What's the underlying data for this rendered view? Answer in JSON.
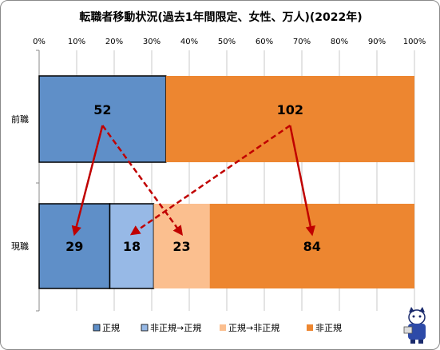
{
  "chart_data": {
    "type": "bar",
    "orientation": "horizontal",
    "stacking": "percent",
    "title": "転職者移動状況(過去1年間限定、女性、万人)(2022年)",
    "categories": [
      "前職",
      "現職"
    ],
    "x_ticks": [
      "0%",
      "10%",
      "20%",
      "30%",
      "40%",
      "50%",
      "60%",
      "70%",
      "80%",
      "90%",
      "100%"
    ],
    "xlim": [
      0,
      100
    ],
    "grid": true,
    "series": [
      {
        "name": "正規",
        "values": [
          52,
          29
        ],
        "color": "#5f8fc8"
      },
      {
        "name": "非正規→正規",
        "values": [
          0,
          18
        ],
        "color": "#97b9e6"
      },
      {
        "name": "正規→非正規",
        "values": [
          0,
          23
        ],
        "color": "#fbbf8f"
      },
      {
        "name": "非正規",
        "values": [
          102,
          84
        ],
        "color": "#ed8630"
      }
    ],
    "bar_labels": [
      {
        "category": "前職",
        "series": "正規",
        "text": "52"
      },
      {
        "category": "前職",
        "series": "非正規",
        "text": "102"
      },
      {
        "category": "現職",
        "series": "正規",
        "text": "29"
      },
      {
        "category": "現職",
        "series": "非正規→正規",
        "text": "18"
      },
      {
        "category": "現職",
        "series": "正規→非正規",
        "text": "23"
      },
      {
        "category": "現職",
        "series": "非正規",
        "text": "84"
      }
    ],
    "arrows": [
      {
        "from": "前職.正規",
        "to": "現職.正規",
        "style": "solid"
      },
      {
        "from": "前職.正規",
        "to": "現職.正規→非正規",
        "style": "dashed"
      },
      {
        "from": "前職.非正規",
        "to": "現職.非正規→正規",
        "style": "dashed"
      },
      {
        "from": "前職.非正規",
        "to": "現職.非正規",
        "style": "solid"
      }
    ],
    "arrow_color": "#c00000",
    "legend_position": "bottom"
  }
}
